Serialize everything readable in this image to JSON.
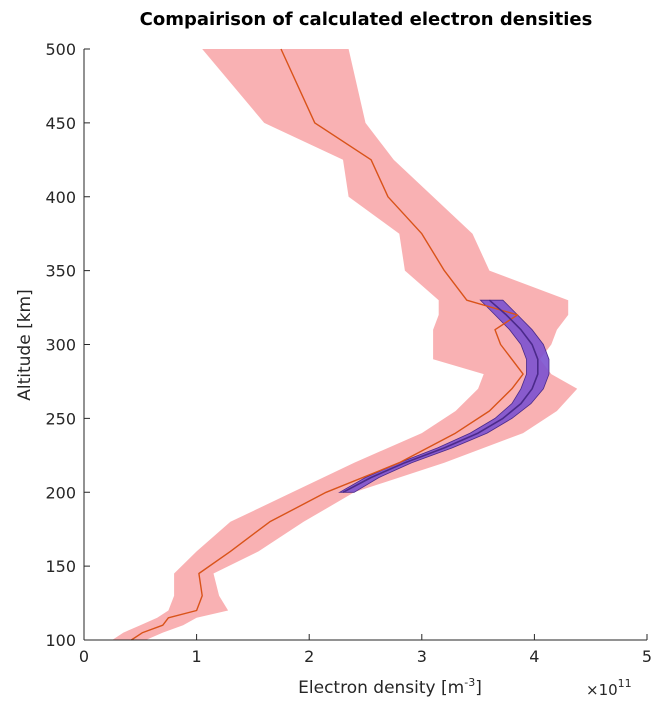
{
  "chart_data": {
    "type": "line",
    "title": "Compairison of calculated electron densities",
    "xlabel": "Electron density",
    "xlabel_unit_base": "m",
    "xlabel_unit_exp": "-3",
    "ylabel": "Altitude  [km]",
    "x_multiplier_base": "×10",
    "x_multiplier_exp": "11",
    "xlim": [
      0,
      5
    ],
    "ylim": [
      100,
      500
    ],
    "xticks": [
      0,
      1,
      2,
      3,
      4,
      5
    ],
    "yticks": [
      100,
      150,
      200,
      250,
      300,
      350,
      400,
      450,
      500
    ],
    "xtick_labels": [
      "0",
      "1",
      "2",
      "3",
      "4",
      "5"
    ],
    "ytick_labels": [
      "100",
      "150",
      "200",
      "250",
      "300",
      "350",
      "400",
      "450",
      "500"
    ],
    "grid": false,
    "series": [
      {
        "color": "#d95319",
        "band_color": "#f8a3a6",
        "altitude": [
          100,
          105,
          110,
          115,
          120,
          130,
          145,
          160,
          180,
          200,
          220,
          240,
          255,
          270,
          280,
          290,
          300,
          310,
          320,
          330,
          350,
          375,
          400,
          425,
          450,
          500
        ],
        "value": [
          0.42,
          0.52,
          0.7,
          0.75,
          1.0,
          1.05,
          1.02,
          1.3,
          1.65,
          2.15,
          2.8,
          3.3,
          3.6,
          3.8,
          3.9,
          3.8,
          3.7,
          3.65,
          3.85,
          3.4,
          3.2,
          3.0,
          2.7,
          2.55,
          2.05,
          1.75
        ],
        "lower": [
          0.25,
          0.35,
          0.5,
          0.65,
          0.75,
          0.8,
          0.8,
          1.0,
          1.3,
          1.85,
          2.4,
          3.0,
          3.3,
          3.5,
          3.55,
          3.1,
          3.1,
          3.1,
          3.15,
          3.15,
          2.85,
          2.8,
          2.35,
          2.3,
          1.6,
          1.05
        ],
        "upper": [
          0.55,
          0.7,
          0.88,
          1.0,
          1.28,
          1.2,
          1.15,
          1.55,
          1.95,
          2.4,
          3.2,
          3.9,
          4.2,
          4.38,
          4.15,
          4.05,
          4.15,
          4.2,
          4.3,
          4.3,
          3.6,
          3.45,
          3.1,
          2.75,
          2.5,
          2.35
        ]
      },
      {
        "color": "#4b2a8a",
        "band_color": "#7b52cf",
        "altitude": [
          200,
          210,
          220,
          230,
          240,
          250,
          260,
          270,
          280,
          290,
          300,
          310,
          320,
          330
        ],
        "value": [
          2.3,
          2.55,
          2.85,
          3.2,
          3.5,
          3.72,
          3.88,
          3.98,
          4.03,
          4.03,
          3.98,
          3.88,
          3.75,
          3.6
        ],
        "lower": [
          2.27,
          2.5,
          2.8,
          3.14,
          3.43,
          3.65,
          3.8,
          3.88,
          3.93,
          3.93,
          3.88,
          3.78,
          3.65,
          3.52
        ],
        "upper": [
          2.4,
          2.62,
          2.91,
          3.27,
          3.58,
          3.8,
          3.97,
          4.08,
          4.13,
          4.13,
          4.08,
          3.98,
          3.85,
          3.72
        ]
      }
    ]
  }
}
